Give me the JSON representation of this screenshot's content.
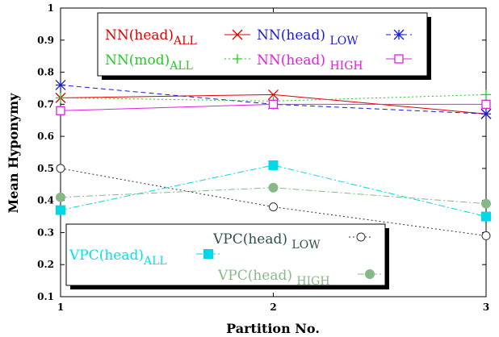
{
  "chart_data": {
    "type": "line",
    "title": "",
    "xlabel": "Partition No.",
    "ylabel": "Mean Hyponymy",
    "x": [
      1,
      2,
      3
    ],
    "xlim": [
      1,
      3
    ],
    "ylim": [
      0.1,
      1.0
    ],
    "xticks": [
      "1",
      "2",
      "3"
    ],
    "yticks": [
      "0.1",
      "0.2",
      "0.3",
      "0.4",
      "0.5",
      "0.6",
      "0.7",
      "0.8",
      "0.9",
      "1"
    ],
    "grid": false,
    "legends": [
      {
        "placement": "top",
        "entries": [
          0,
          1,
          2,
          3
        ]
      },
      {
        "placement": "bottom",
        "entries": [
          4,
          5,
          6
        ]
      }
    ],
    "series": [
      {
        "name": "NN(head)",
        "sub": "ALL",
        "values": [
          0.72,
          0.73,
          0.67
        ],
        "color": "#dd0000",
        "marker": "x",
        "dash": "solid",
        "label_color": "#dd0000"
      },
      {
        "name": "NN(head) ",
        "sub": "LOW",
        "values": [
          0.76,
          0.7,
          0.67
        ],
        "color": "#1a1adb",
        "marker": "asterisk",
        "dash": "dashed",
        "label_color": "#1a1adb"
      },
      {
        "name": "NN(mod)",
        "sub": "ALL",
        "values": [
          0.72,
          0.71,
          0.73
        ],
        "color": "#22cc22",
        "marker": "plus",
        "dash": "dotted",
        "label_color": "#22cc22"
      },
      {
        "name": "NN(head) ",
        "sub": "HIGH",
        "values": [
          0.68,
          0.7,
          0.7
        ],
        "color": "#e020e0",
        "marker": "square-open",
        "dash": "solid",
        "label_color": "#e020e0"
      },
      {
        "name": "VPC(head)",
        "sub": "ALL",
        "values": [
          0.37,
          0.51,
          0.35
        ],
        "color": "#00d8e8",
        "marker": "square-filled",
        "dash": "dashdot",
        "label_color": "#00e0f0"
      },
      {
        "name": "VPC(head) ",
        "sub": "LOW",
        "values": [
          0.5,
          0.38,
          0.29
        ],
        "color": "#303030",
        "marker": "circle-open",
        "dash": "dotted",
        "label_color": "#2f4f4f"
      },
      {
        "name": "VPC(head) ",
        "sub": "HIGH",
        "values": [
          0.41,
          0.44,
          0.39
        ],
        "color": "#88b888",
        "marker": "circle-filled",
        "dash": "dashdot",
        "label_color": "#88b888"
      }
    ]
  }
}
